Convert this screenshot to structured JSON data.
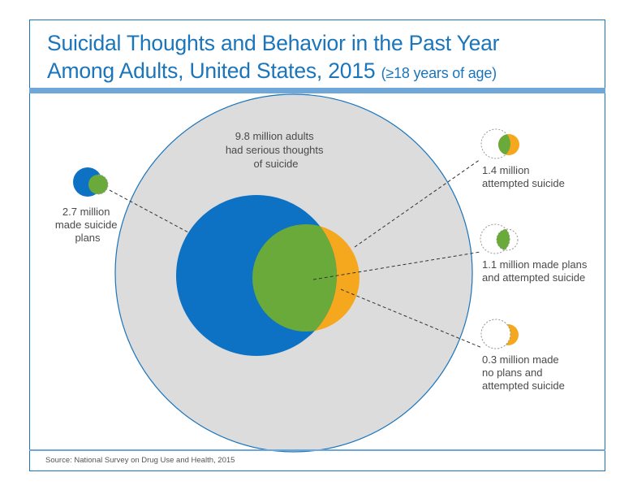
{
  "title": {
    "line1": "Suicidal Thoughts and Behavior in the Past Year",
    "line2": "Among Adults, United States, 2015",
    "qualifier": "(≥18 years of age)"
  },
  "labels": {
    "thoughts": [
      "9.8 million adults",
      "had serious thoughts",
      "of suicide"
    ],
    "plans": [
      "2.7 million",
      "made suicide",
      "plans"
    ],
    "attempted": [
      "1.4 million",
      "attempted suicide"
    ],
    "plans_attempted": [
      "1.1 million made plans",
      "and attempted suicide"
    ],
    "no_plans_attempted": [
      "0.3 million made",
      "no plans and",
      "attempted suicide"
    ]
  },
  "source": "Source: National Survey on Drug Use and Health, 2015",
  "colors": {
    "brand_blue": "#1b75bb",
    "outer_gray": "#dcdcdc",
    "plans_blue": "#0d72c4",
    "overlap_green": "#6aaa3a",
    "attempt_orange": "#f5a81e"
  }
}
